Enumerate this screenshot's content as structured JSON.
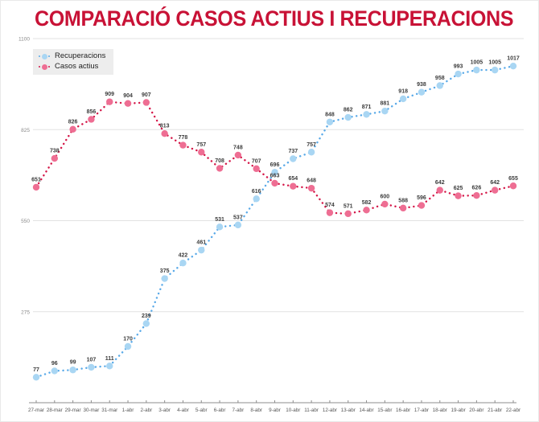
{
  "title": "COMPARACIÓ CASOS ACTIUS I RECUPERACIONS",
  "colors": {
    "title": "#c81236",
    "grid": "#e2e2e2",
    "axis": "#8d8d8d",
    "y_tick_label": "#8a8a8a",
    "x_tick_label": "#555555",
    "point_label": "#3b3b3b",
    "legend_bg": "#ededed"
  },
  "chart_data": {
    "type": "line",
    "title": "COMPARACIÓ CASOS ACTIUS I RECUPERACIONS",
    "categories": [
      "27-mar",
      "28-mar",
      "29-mar",
      "30-mar",
      "31-mar",
      "1-abr",
      "2-abr",
      "3-abr",
      "4-abr",
      "5-abr",
      "6-abr",
      "7-abr",
      "8-abr",
      "9-abr",
      "10-abr",
      "11-abr",
      "12-abr",
      "13-abr",
      "14-abr",
      "15-abr",
      "16-abr",
      "17-abr",
      "18-abr",
      "19-abr",
      "20-abr",
      "21-abr",
      "22-abr"
    ],
    "series": [
      {
        "name": "Recuperacions",
        "values": [
          77,
          96,
          99,
          107,
          111,
          170,
          239,
          375,
          422,
          461,
          531,
          537,
          616,
          696,
          737,
          757,
          848,
          862,
          871,
          881,
          918,
          938,
          958,
          993,
          1005,
          1005,
          1017
        ],
        "marker_color": "#a9d6f3",
        "line_color": "#58a9e8"
      },
      {
        "name": "Casos actius",
        "values": [
          651,
          738,
          826,
          856,
          909,
          904,
          907,
          813,
          778,
          757,
          708,
          748,
          707,
          663,
          654,
          648,
          574,
          571,
          582,
          600,
          588,
          596,
          642,
          625,
          626,
          642,
          655
        ],
        "marker_color": "#ee6e93",
        "line_color": "#d41647"
      }
    ],
    "ylim": [
      0,
      1100
    ],
    "yticks": [
      275,
      550,
      825,
      1100
    ],
    "grid": true,
    "point_labels": true,
    "legend_position": "top-left",
    "line_style": "dotted"
  }
}
